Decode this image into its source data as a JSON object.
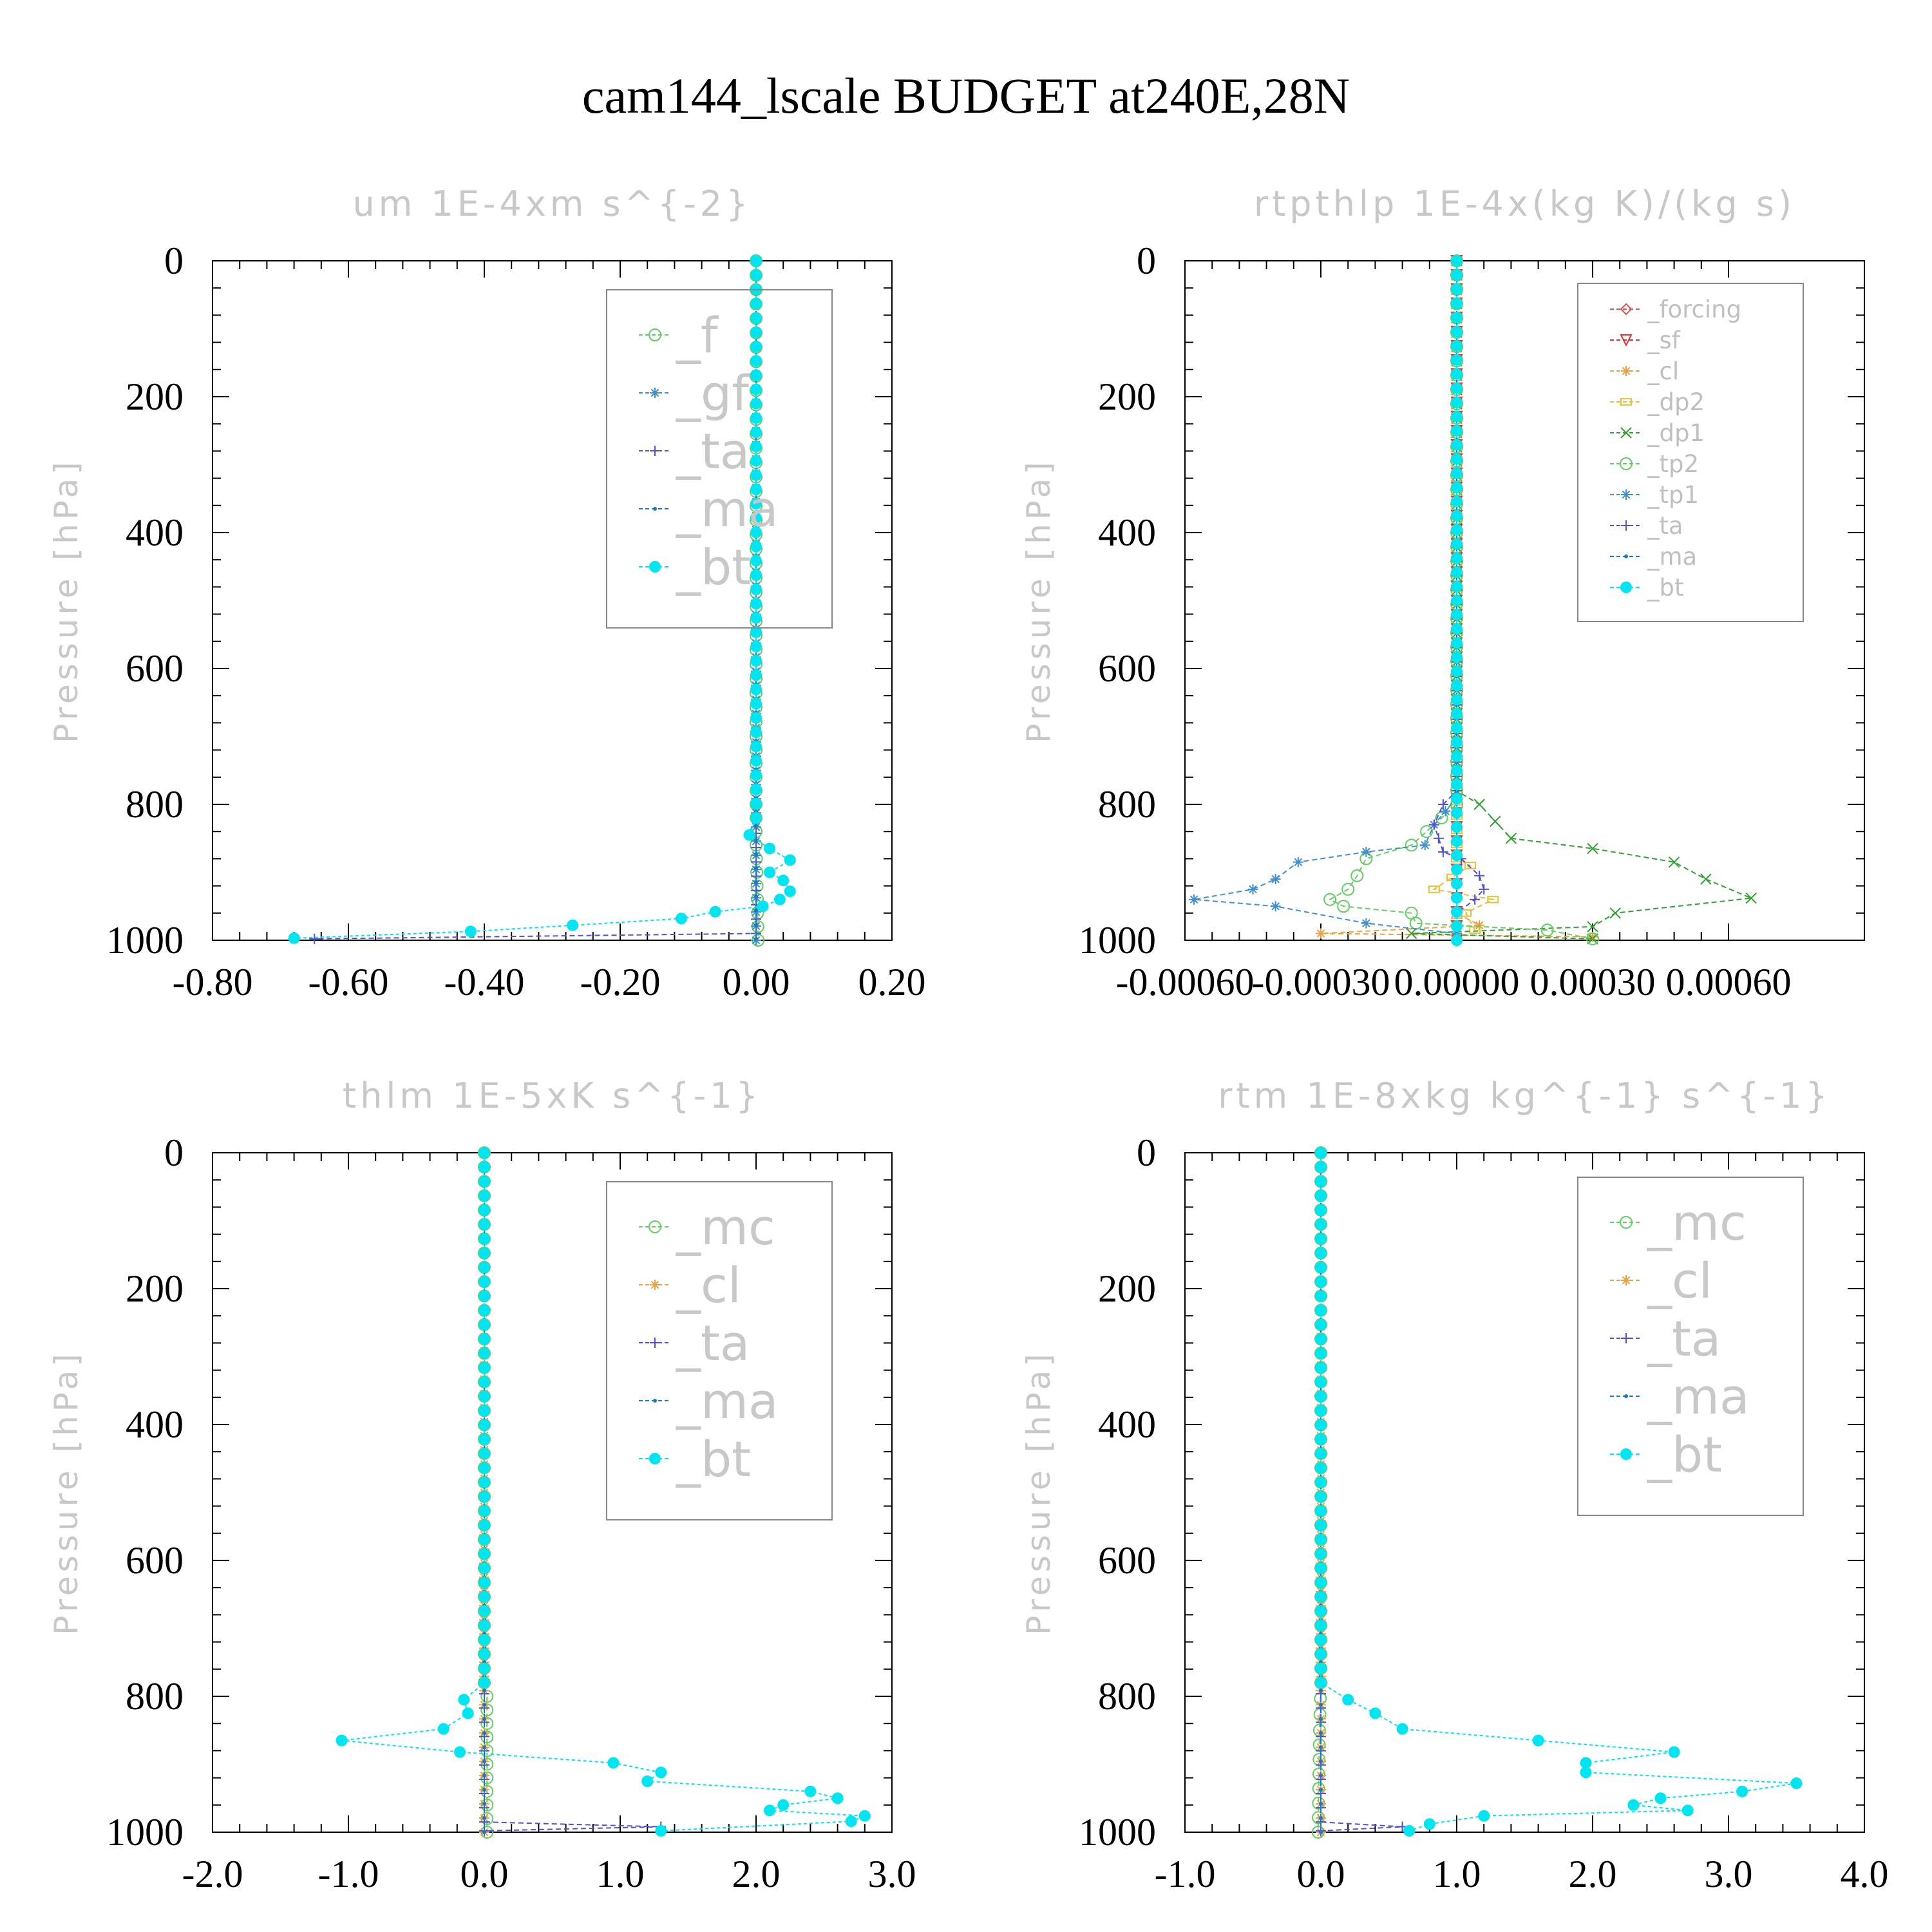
{
  "figure_title": "cam144_lscale  BUDGET at240E,28N",
  "colors": {
    "_f": "#5ecf5e",
    "_gf": "#3a8fd0",
    "_ta": "#5050d8",
    "_ma": "#1a78c8",
    "_bt": "#00e5f0",
    "_forcing": "#e05050",
    "_sf": "#e83030",
    "_cl": "#f0a040",
    "_dp2": "#e8c030",
    "_dp1": "#30a030",
    "_tp2": "#60d060",
    "_tp1": "#4090d0",
    "_mc": "#60d060"
  },
  "chart_data": [
    {
      "type": "line",
      "title": "um  1E-4xm s^{-2}",
      "ylabel": "Pressure [hPa]",
      "xlabel": "",
      "xlim": [
        -0.8,
        0.2
      ],
      "ylim": [
        1000,
        0
      ],
      "xticks": [
        "-0.80",
        "-0.60",
        "-0.40",
        "-0.20",
        "0.00",
        "0.20"
      ],
      "yticks": [
        "0",
        "200",
        "400",
        "600",
        "800",
        "1000"
      ],
      "legend": [
        "_f",
        "_gf",
        "_ta",
        "_ma",
        "_bt"
      ],
      "legend_position": "top-right",
      "series": [
        {
          "name": "_f",
          "points": [
            [
              0,
              0
            ],
            [
              0,
              700
            ],
            [
              0,
              860
            ],
            [
              0.002,
              940
            ],
            [
              0.003,
              1000
            ]
          ]
        },
        {
          "name": "_gf",
          "points": [
            [
              0,
              0
            ],
            [
              0,
              1000
            ]
          ]
        },
        {
          "name": "_ta",
          "points": [
            [
              0,
              0
            ],
            [
              0,
              990
            ],
            [
              -0.65,
              998
            ]
          ]
        },
        {
          "name": "_ma",
          "points": [
            [
              0,
              0
            ],
            [
              0,
              998
            ]
          ]
        },
        {
          "name": "_bt",
          "points": [
            [
              0,
              0
            ],
            [
              0,
              820
            ],
            [
              -0.01,
              845
            ],
            [
              0.02,
              865
            ],
            [
              0.05,
              882
            ],
            [
              0.02,
              900
            ],
            [
              0.04,
              912
            ],
            [
              0.05,
              928
            ],
            [
              0.035,
              940
            ],
            [
              0.01,
              950
            ],
            [
              -0.06,
              958
            ],
            [
              -0.11,
              968
            ],
            [
              -0.27,
              978
            ],
            [
              -0.42,
              987
            ],
            [
              -0.68,
              997
            ]
          ]
        }
      ]
    },
    {
      "type": "line",
      "title": "rtpthlp  1E-4x(kg K)/(kg s)",
      "ylabel": "Pressure [hPa]",
      "xlabel": "",
      "xlim": [
        -0.0006,
        0.0009
      ],
      "ylim": [
        1000,
        0
      ],
      "xticks": [
        "-0.00060",
        "-0.00030",
        "0.00000",
        "0.00030",
        "0.00060"
      ],
      "yticks": [
        "0",
        "200",
        "400",
        "600",
        "800",
        "1000"
      ],
      "legend": [
        "_forcing",
        "_sf",
        "_cl",
        "_dp2",
        "_dp1",
        "_tp2",
        "_tp1",
        "_ta",
        "_ma",
        "_bt"
      ],
      "legend_position": "top-right",
      "series": [
        {
          "name": "_forcing",
          "points": [
            [
              0,
              0
            ],
            [
              0,
              1000
            ]
          ]
        },
        {
          "name": "_sf",
          "points": [
            [
              0,
              0
            ],
            [
              0,
              1000
            ]
          ]
        },
        {
          "name": "_cl",
          "points": [
            [
              0,
              0
            ],
            [
              0,
              960
            ],
            [
              5e-05,
              978
            ],
            [
              -0.0003,
              990
            ],
            [
              0.0003,
              995
            ]
          ]
        },
        {
          "name": "_dp2",
          "points": [
            [
              0,
              0
            ],
            [
              0,
              880
            ],
            [
              3e-05,
              890
            ],
            [
              -5e-05,
              925
            ],
            [
              8e-05,
              940
            ],
            [
              2e-05,
              960
            ],
            [
              4e-05,
              985
            ]
          ]
        },
        {
          "name": "_dp1",
          "points": [
            [
              0,
              0
            ],
            [
              0,
              780
            ],
            [
              5e-05,
              800
            ],
            [
              0.00012,
              850
            ],
            [
              0.0003,
              865
            ],
            [
              0.00048,
              885
            ],
            [
              0.00055,
              910
            ],
            [
              0.00065,
              938
            ],
            [
              0.00035,
              960
            ],
            [
              0.0003,
              980
            ],
            [
              -0.0001,
              990
            ],
            [
              0.0003,
              998
            ]
          ]
        },
        {
          "name": "_tp2",
          "points": [
            [
              0,
              0
            ],
            [
              0,
              800
            ],
            [
              -0.0001,
              860
            ],
            [
              -0.0002,
              880
            ],
            [
              -0.00022,
              905
            ],
            [
              -0.00024,
              925
            ],
            [
              -0.00028,
              940
            ],
            [
              -0.00025,
              950
            ],
            [
              -0.0001,
              960
            ],
            [
              -9e-05,
              975
            ],
            [
              0.0002,
              985
            ],
            [
              0.0003,
              998
            ]
          ]
        },
        {
          "name": "_tp1",
          "points": [
            [
              0,
              0
            ],
            [
              0,
              790
            ],
            [
              -5e-05,
              830
            ],
            [
              -7e-05,
              860
            ],
            [
              -0.0002,
              870
            ],
            [
              -0.00035,
              885
            ],
            [
              -0.0004,
              910
            ],
            [
              -0.00045,
              925
            ],
            [
              -0.00058,
              940
            ],
            [
              -0.0004,
              950
            ],
            [
              -0.0002,
              975
            ],
            [
              0,
              990
            ]
          ]
        },
        {
          "name": "_ta",
          "points": [
            [
              0,
              0
            ],
            [
              0,
              780
            ],
            [
              -3e-05,
              800
            ],
            [
              -5e-05,
              830
            ],
            [
              -3e-05,
              870
            ],
            [
              1e-05,
              880
            ],
            [
              5e-05,
              905
            ],
            [
              6e-05,
              925
            ],
            [
              4e-05,
              940
            ],
            [
              0,
              960
            ],
            [
              0,
              1000
            ]
          ]
        },
        {
          "name": "_ma",
          "points": [
            [
              0,
              0
            ],
            [
              0,
              1000
            ]
          ]
        },
        {
          "name": "_bt",
          "points": [
            [
              0,
              0
            ],
            [
              0,
              1000
            ]
          ]
        }
      ]
    },
    {
      "type": "line",
      "title": "thlm  1E-5xK s^{-1}",
      "ylabel": "Pressure [hPa]",
      "xlabel": "",
      "xlim": [
        -2.0,
        3.0
      ],
      "ylim": [
        1000,
        0
      ],
      "xticks": [
        "-2.0",
        "-1.0",
        "0.0",
        "1.0",
        "2.0",
        "3.0"
      ],
      "yticks": [
        "0",
        "200",
        "400",
        "600",
        "800",
        "1000"
      ],
      "legend": [
        "_mc",
        "_cl",
        "_ta",
        "_ma",
        "_bt"
      ],
      "legend_position": "top-right",
      "series": [
        {
          "name": "_mc",
          "points": [
            [
              0,
              0
            ],
            [
              0,
              780
            ],
            [
              0.02,
              800
            ],
            [
              0.02,
              900
            ],
            [
              0.02,
              1000
            ]
          ]
        },
        {
          "name": "_cl",
          "points": [
            [
              0,
              0
            ],
            [
              0,
              1000
            ]
          ]
        },
        {
          "name": "_ta",
          "points": [
            [
              0,
              0
            ],
            [
              0,
              985
            ],
            [
              1.3,
              992
            ],
            [
              0,
              998
            ]
          ]
        },
        {
          "name": "_ma",
          "points": [
            [
              0,
              0
            ],
            [
              0,
              1000
            ]
          ]
        },
        {
          "name": "_bt",
          "points": [
            [
              0,
              0
            ],
            [
              0,
              780
            ],
            [
              -0.15,
              805
            ],
            [
              -0.12,
              825
            ],
            [
              -0.3,
              848
            ],
            [
              -1.05,
              865
            ],
            [
              -0.18,
              882
            ],
            [
              0.95,
              898
            ],
            [
              1.3,
              912
            ],
            [
              1.2,
              925
            ],
            [
              2.4,
              940
            ],
            [
              2.6,
              950
            ],
            [
              2.2,
              960
            ],
            [
              2.1,
              968
            ],
            [
              2.8,
              976
            ],
            [
              2.7,
              984
            ],
            [
              1.3,
              998
            ]
          ]
        }
      ]
    },
    {
      "type": "line",
      "title": "rtm  1E-8xkg kg^{-1} s^{-1}",
      "ylabel": "Pressure [hPa]",
      "xlabel": "",
      "xlim": [
        -1.0,
        4.0
      ],
      "ylim": [
        1000,
        0
      ],
      "xticks": [
        "-1.0",
        "0.0",
        "1.0",
        "2.0",
        "3.0",
        "4.0"
      ],
      "yticks": [
        "0",
        "200",
        "400",
        "600",
        "800",
        "1000"
      ],
      "legend": [
        "_mc",
        "_cl",
        "_ta",
        "_ma",
        "_bt"
      ],
      "legend_position": "top-right",
      "series": [
        {
          "name": "_mc",
          "points": [
            [
              0,
              0
            ],
            [
              0,
              780
            ],
            [
              -0.01,
              850
            ],
            [
              -0.02,
              1000
            ]
          ]
        },
        {
          "name": "_cl",
          "points": [
            [
              0,
              0
            ],
            [
              0,
              1000
            ]
          ]
        },
        {
          "name": "_ta",
          "points": [
            [
              0,
              0
            ],
            [
              0,
              985
            ],
            [
              0.6,
              992
            ],
            [
              0,
              998
            ]
          ]
        },
        {
          "name": "_ma",
          "points": [
            [
              0,
              0
            ],
            [
              0,
              1000
            ]
          ]
        },
        {
          "name": "_bt",
          "points": [
            [
              0,
              0
            ],
            [
              0,
              780
            ],
            [
              0.2,
              805
            ],
            [
              0.4,
              825
            ],
            [
              0.6,
              848
            ],
            [
              1.6,
              865
            ],
            [
              2.6,
              882
            ],
            [
              1.95,
              898
            ],
            [
              1.95,
              912
            ],
            [
              3.5,
              928
            ],
            [
              3.1,
              940
            ],
            [
              2.5,
              950
            ],
            [
              2.3,
              960
            ],
            [
              2.7,
              968
            ],
            [
              1.2,
              976
            ],
            [
              0.8,
              988
            ],
            [
              0.65,
              998
            ]
          ]
        }
      ]
    }
  ]
}
